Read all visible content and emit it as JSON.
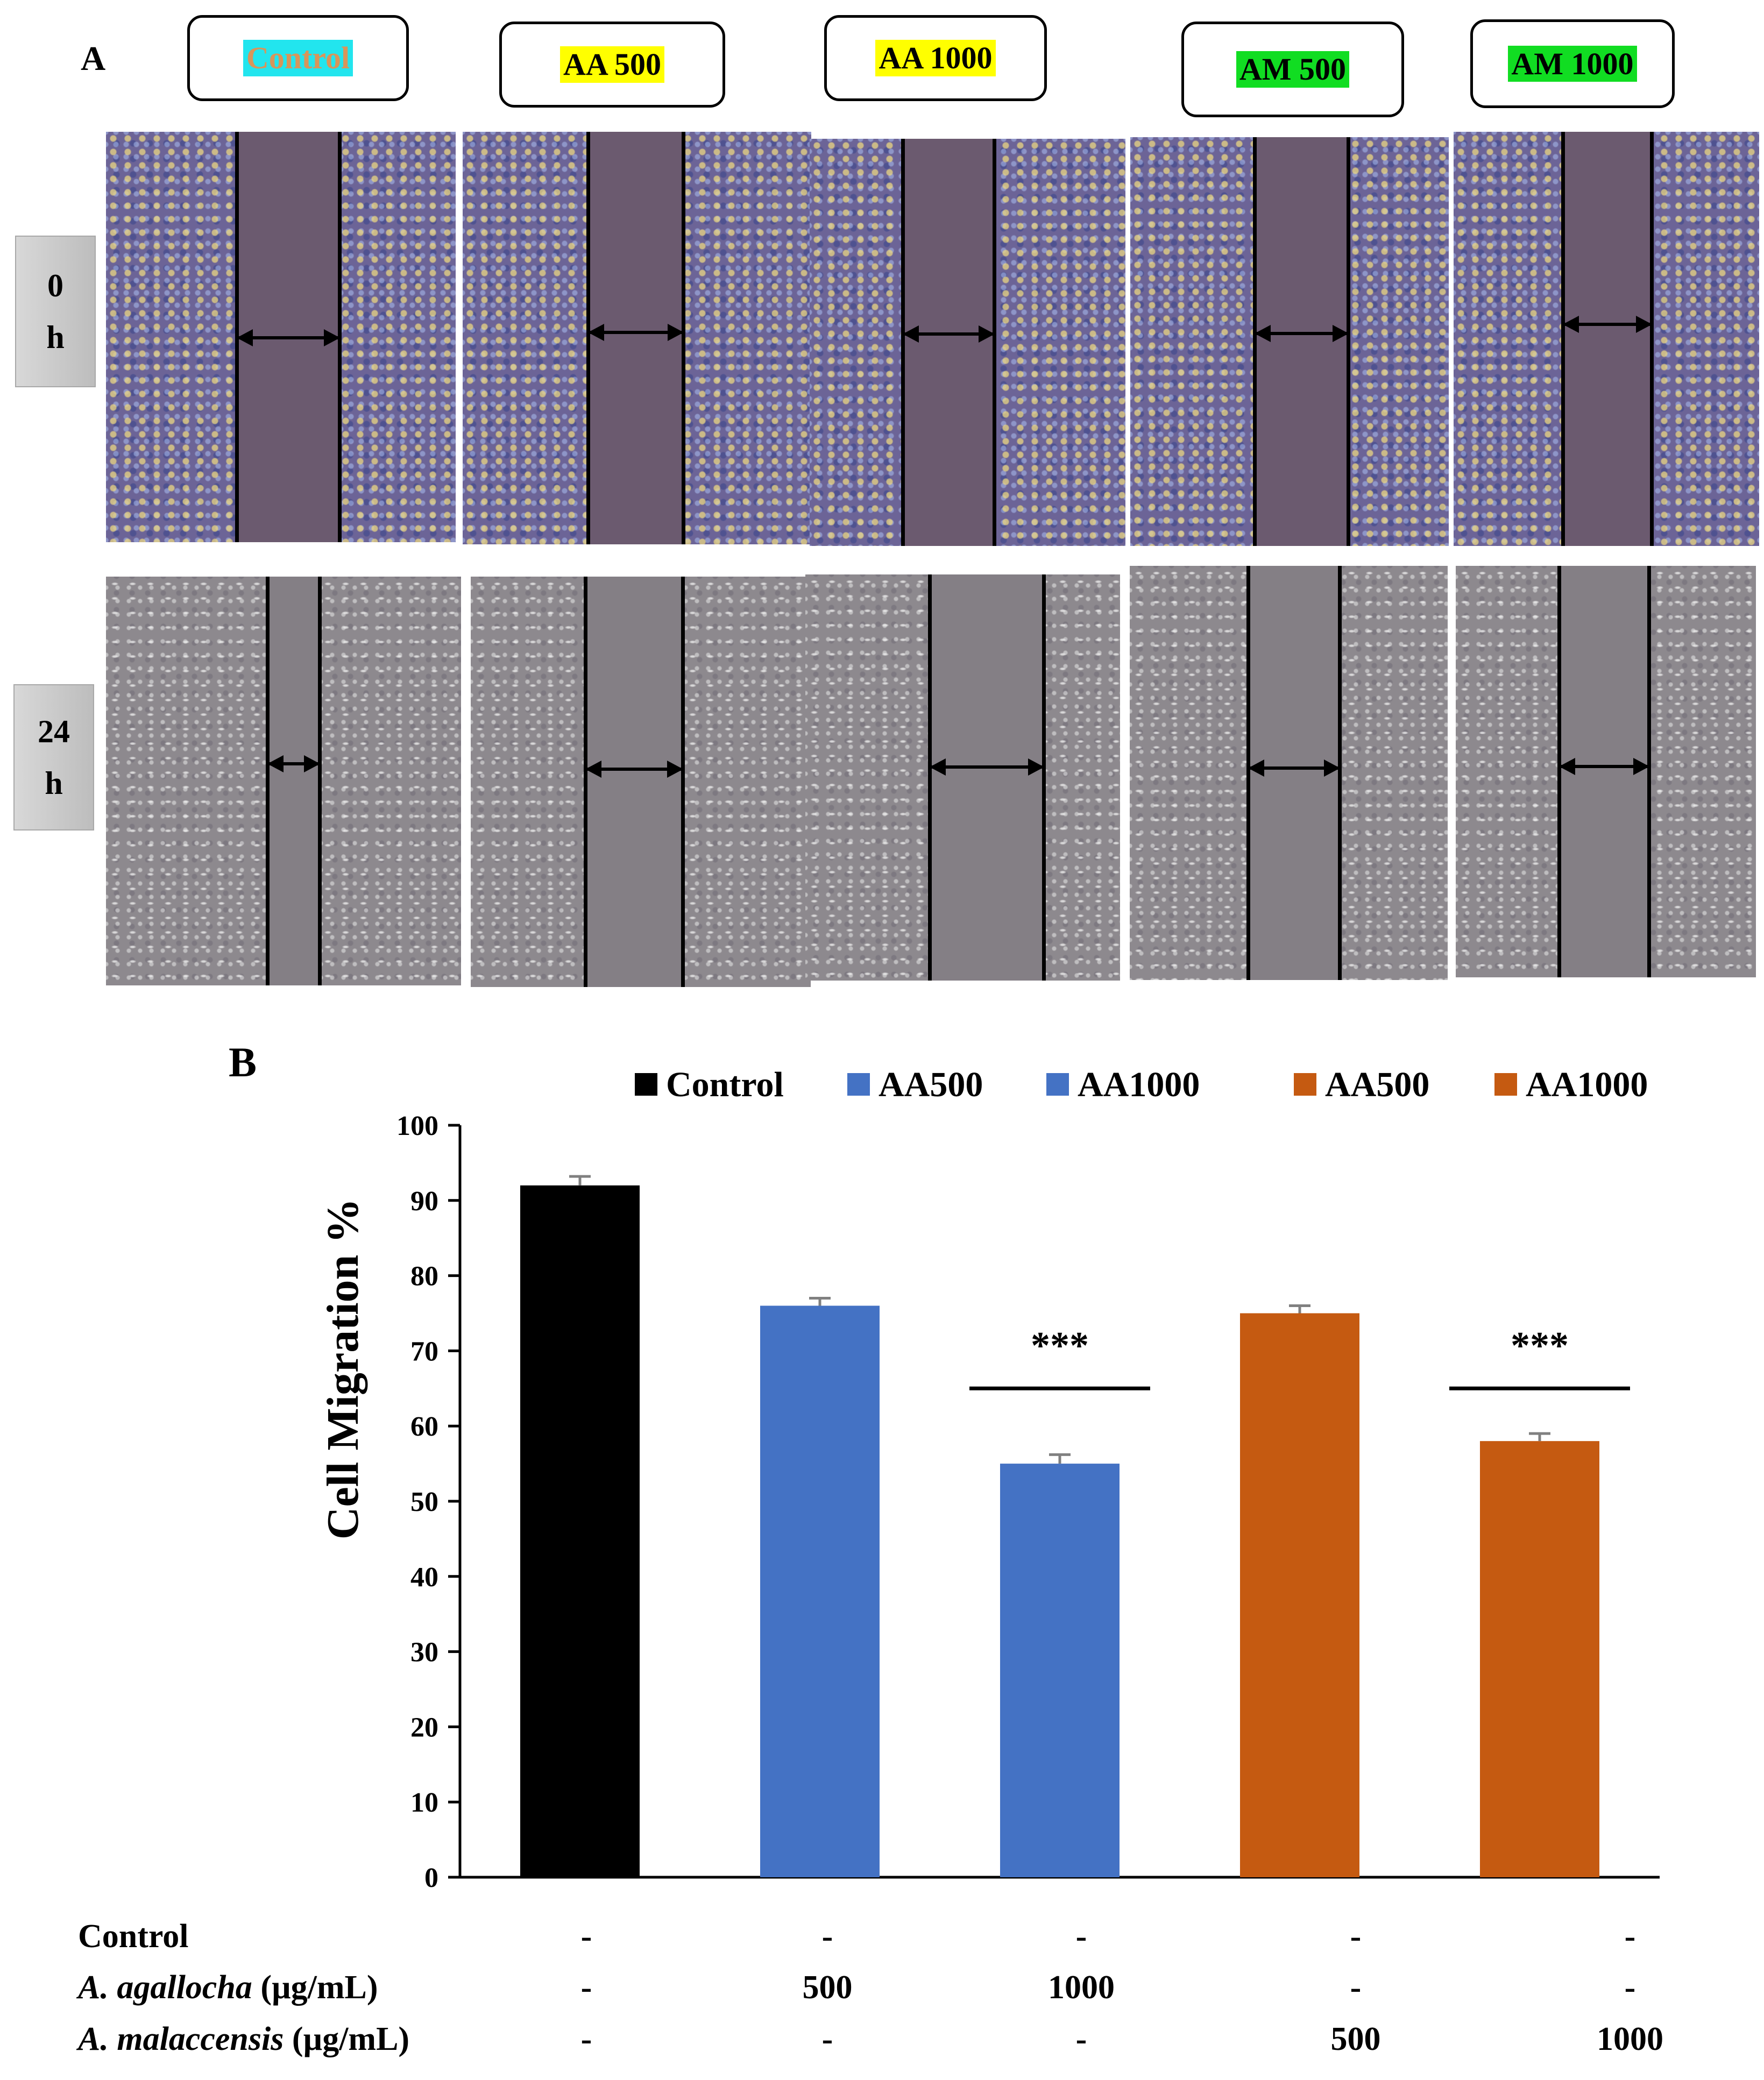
{
  "panel_a": {
    "letter": "A",
    "groups": [
      {
        "label": "Control",
        "highlight": "#22e5ee",
        "text_color": "#d8955a"
      },
      {
        "label": "AA 500",
        "highlight": "#ffff00",
        "text_color": "#000000"
      },
      {
        "label": "AA 1000",
        "highlight": "#ffff00",
        "text_color": "#000000"
      },
      {
        "label": "AM 500",
        "highlight": "#11dd22",
        "text_color": "#000000"
      },
      {
        "label": "AM 1000",
        "highlight": "#11dd22",
        "text_color": "#000000"
      }
    ],
    "timepoints": [
      {
        "line1": "0",
        "line2": "h"
      },
      {
        "line1": "24",
        "line2": "h"
      }
    ]
  },
  "panel_b": {
    "letter": "B"
  },
  "chart_data": {
    "type": "bar",
    "categories": [
      "Control",
      "AA500",
      "AA1000",
      "AM500",
      "AM1000"
    ],
    "legend": [
      {
        "label": "Control",
        "color": "#000000"
      },
      {
        "label": "AA500",
        "color": "#4472c4"
      },
      {
        "label": "AA1000",
        "color": "#4472c4"
      },
      {
        "label": "AA500",
        "color": "#c55a11"
      },
      {
        "label": "AA1000",
        "color": "#c55a11"
      }
    ],
    "legend_position": "top",
    "values": [
      92,
      76,
      55,
      75,
      58
    ],
    "errors": [
      1.2,
      1.0,
      1.2,
      1.0,
      1.0
    ],
    "colors": [
      "#000000",
      "#4472c4",
      "#4472c4",
      "#c55a11",
      "#c55a11"
    ],
    "ylabel": "Cell Migration %",
    "ylim": [
      0,
      100
    ],
    "yticks": [
      0,
      10,
      20,
      30,
      40,
      50,
      60,
      70,
      80,
      90,
      100
    ],
    "grid": false,
    "significance": [
      "",
      "",
      "***",
      "",
      "***"
    ]
  },
  "conditions": {
    "rows": [
      {
        "name": "Control",
        "name_italic": "",
        "unit": "",
        "values": [
          "-",
          "-",
          "-",
          "-",
          "-"
        ]
      },
      {
        "name": "",
        "name_italic": "A. agallocha",
        "unit": " (µg/mL)",
        "values": [
          "-",
          "500",
          "1000",
          "-",
          "-"
        ]
      },
      {
        "name": "",
        "name_italic": "A. malaccensis",
        "unit": " (µg/mL)",
        "values": [
          "-",
          "-",
          "-",
          "500",
          "1000"
        ]
      }
    ]
  }
}
